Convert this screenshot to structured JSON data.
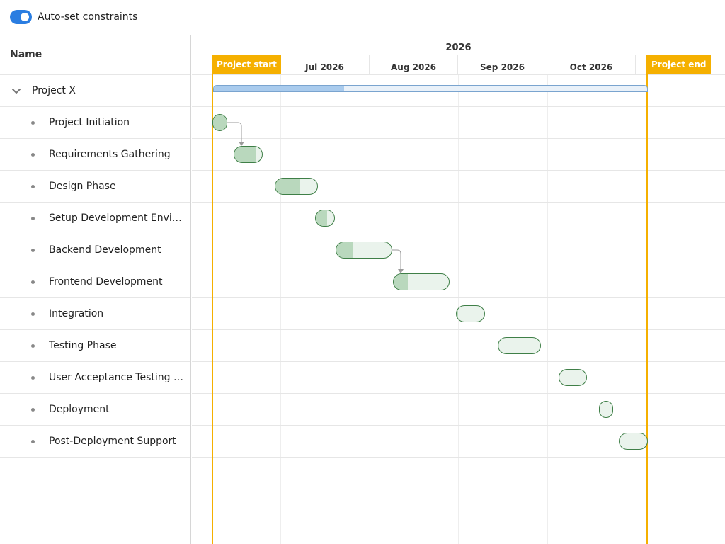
{
  "toolbar": {
    "toggle_on": true,
    "toggle_label": "Auto-set constraints"
  },
  "grid": {
    "name_header": "Name"
  },
  "tasks": [
    {
      "name": "Project X",
      "type": "parent",
      "progress": 0.3
    },
    {
      "name": "Project Initiation",
      "progress": 1.0
    },
    {
      "name": "Requirements Gathering",
      "progress": 0.8
    },
    {
      "name": "Design Phase",
      "progress": 0.6
    },
    {
      "name": "Setup Development Environment",
      "progress": 0.6
    },
    {
      "name": "Backend Development",
      "progress": 0.3
    },
    {
      "name": "Frontend Development",
      "progress": 0.25
    },
    {
      "name": "Integration",
      "progress": 0.05
    },
    {
      "name": "Testing Phase",
      "progress": 0.02
    },
    {
      "name": "User Acceptance Testing (UAT)",
      "progress": 0.0
    },
    {
      "name": "Deployment",
      "progress": 0.0
    },
    {
      "name": "Post-Deployment Support",
      "progress": 0.0
    }
  ],
  "timeline": {
    "year": "2026",
    "months": [
      "Jul 2026",
      "Aug 2026",
      "Sep 2026",
      "Oct 2026"
    ],
    "project_start_label": "Project start",
    "project_end_label": "Project end"
  },
  "colors": {
    "accent": "#2a7de1",
    "marker": "#f5b000",
    "task_border": "#3f7f47",
    "task_fill": "#eaf3ec",
    "task_progress": "#b9d8bd",
    "summary_fill": "#a9cbed"
  }
}
